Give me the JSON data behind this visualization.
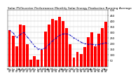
{
  "title": "Solar PV/Inverter Performance Monthly Solar Energy Production Running Average",
  "bar_color": "#FF0000",
  "line_color": "#0000BB",
  "background_color": "#FFFFFF",
  "grid_color": "#BBBBBB",
  "months": [
    "May\n07",
    "Jun\n07",
    "Jul\n07",
    "Aug\n07",
    "Sep\n07",
    "Oct\n07",
    "Nov\n07",
    "Dec\n07",
    "Jan\n08",
    "Feb\n08",
    "Mar\n08",
    "Apr\n08",
    "May\n08",
    "Jun\n08",
    "Jul\n08",
    "Aug\n08",
    "Sep\n08",
    "Oct\n08",
    "Nov\n08",
    "Dec\n08",
    "Jan\n09",
    "Feb\n09",
    "Mar\n09",
    "Apr\n09",
    "May\n09",
    "Jun\n09",
    "Jul\n09",
    "Aug\n09"
  ],
  "values": [
    320,
    270,
    175,
    370,
    365,
    195,
    58,
    88,
    58,
    148,
    308,
    368,
    418,
    408,
    438,
    398,
    338,
    198,
    78,
    128,
    108,
    172,
    258,
    302,
    178,
    288,
    338,
    392
  ],
  "running_avg": [
    320,
    295,
    255,
    283,
    300,
    260,
    220,
    180,
    155,
    150,
    162,
    195,
    225,
    252,
    274,
    287,
    288,
    275,
    253,
    233,
    213,
    201,
    195,
    197,
    190,
    194,
    200,
    210
  ],
  "ylim": [
    0,
    500
  ],
  "yticks": [
    50,
    100,
    150,
    200,
    250,
    300,
    350,
    400,
    450,
    500
  ],
  "yticklabels": [
    "50",
    "100",
    "150",
    "200",
    "250",
    "300",
    "350",
    "400",
    "450",
    "500"
  ],
  "title_fontsize": 3.2,
  "tick_fontsize": 2.8,
  "xlabel_fontsize": 2.4
}
